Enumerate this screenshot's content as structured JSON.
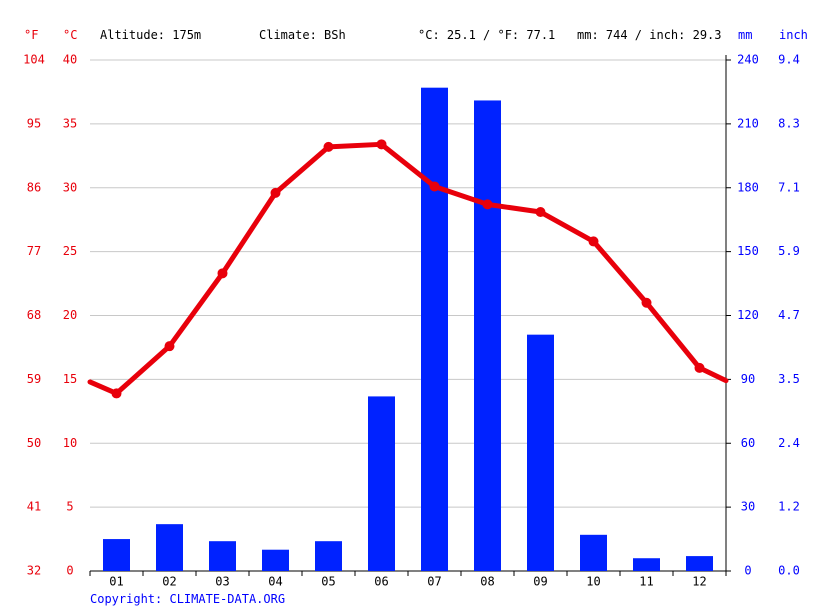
{
  "header": {
    "unit_f": "°F",
    "unit_c": "°C",
    "altitude": "Altitude: 175m",
    "climate": "Climate: BSh",
    "temp_avg": "°C: 25.1 / °F: 77.1",
    "precip_total": "mm: 744 / inch: 29.3",
    "unit_mm": "mm",
    "unit_inch": "inch"
  },
  "copyright": "Copyright: CLIMATE-DATA.ORG",
  "colors": {
    "temperature": "#e8000b",
    "precipitation": "#0022ff",
    "grid": "#c8c8c8",
    "axis_text_red": "#e8000b",
    "axis_text_blue": "#0000ff"
  },
  "chart_data": {
    "type": "bar",
    "categories": [
      "01",
      "02",
      "03",
      "04",
      "05",
      "06",
      "07",
      "08",
      "09",
      "10",
      "11",
      "12"
    ],
    "series": [
      {
        "type": "bar",
        "axis": "right-mm",
        "values": [
          15,
          22,
          14,
          10,
          14,
          82,
          227,
          221,
          111,
          17,
          6,
          7
        ]
      },
      {
        "type": "line",
        "axis": "left-c",
        "values": [
          13.9,
          17.6,
          23.3,
          29.6,
          33.2,
          33.4,
          30.1,
          28.7,
          28.1,
          25.8,
          21.0,
          15.9
        ],
        "edge_start": 14.8,
        "edge_end": 14.9
      }
    ],
    "y_left_c": {
      "ticks": [
        "40",
        "35",
        "30",
        "25",
        "20",
        "15",
        "10",
        "5",
        "0"
      ],
      "range": [
        0,
        40
      ]
    },
    "y_left_f": {
      "ticks": [
        "104",
        "95",
        "86",
        "77",
        "68",
        "59",
        "50",
        "41",
        "32"
      ]
    },
    "y_right_mm": {
      "ticks": [
        "240",
        "210",
        "180",
        "150",
        "120",
        "90",
        "60",
        "30",
        "0"
      ],
      "range": [
        0,
        240
      ]
    },
    "y_right_inch": {
      "ticks": [
        "9.4",
        "8.3",
        "7.1",
        "5.9",
        "4.7",
        "3.5",
        "2.4",
        "1.2",
        "0.0"
      ]
    },
    "grid": true
  }
}
